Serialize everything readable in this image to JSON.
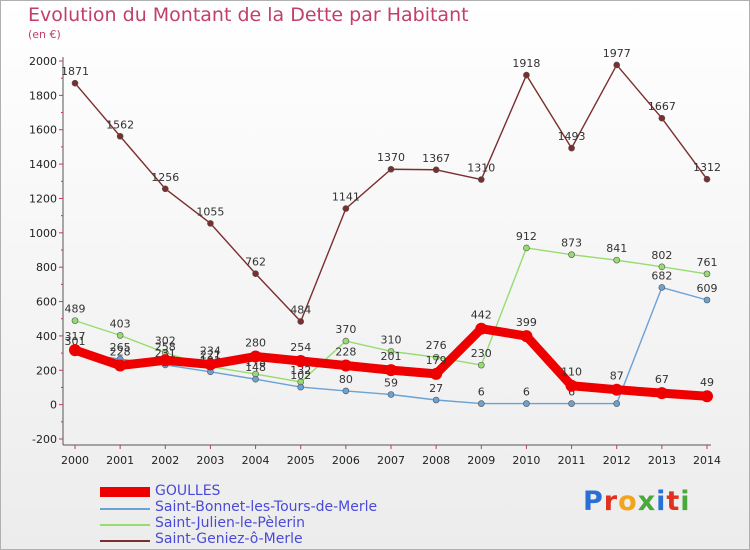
{
  "title": "Evolution du Montant de la Dette par Habitant",
  "subtitle": "(en €)",
  "logo": {
    "text": "Proxiti",
    "colors": [
      "#2a6fd6",
      "#e0301e",
      "#f2a51a",
      "#4aa83c",
      "#2a6fd6",
      "#e0301e",
      "#4aa83c"
    ]
  },
  "chart_data": {
    "type": "line",
    "title": "Evolution du Montant de la Dette par Habitant",
    "ylabel": "(en €)",
    "ylim": [
      -200,
      2000
    ],
    "yticks": [
      -200,
      0,
      200,
      400,
      600,
      800,
      1000,
      1200,
      1400,
      1600,
      1800,
      2000
    ],
    "grid": false,
    "legend_position": "bottom-left",
    "x": [
      "2000",
      "2001",
      "2002",
      "2003",
      "2004",
      "2005",
      "2006",
      "2007",
      "2008",
      "2009",
      "2010",
      "2011",
      "2012",
      "2013",
      "2014"
    ],
    "series": [
      {
        "name": "GOULLES",
        "color": "#ee0000",
        "values": [
          317,
          228,
          258,
          234,
          280,
          254,
          228,
          201,
          179,
          442,
          399,
          110,
          87,
          67,
          49
        ]
      },
      {
        "name": "Saint-Bonnet-les-Tours-de-Merle",
        "color": "#6aa2d4",
        "values": [
          301,
          265,
          231,
          191,
          148,
          102,
          80,
          59,
          27,
          6,
          6,
          6,
          6,
          682,
          609
        ]
      },
      {
        "name": "Saint-Julien-le-Pèlerin",
        "color": "#96dc6e",
        "values": [
          489,
          403,
          302,
          221,
          178,
          132,
          370,
          310,
          276,
          230,
          912,
          873,
          841,
          802,
          761
        ]
      },
      {
        "name": "Saint-Geniez-ô-Merle",
        "color": "#7a2e2e",
        "values": [
          1871,
          1562,
          1256,
          1055,
          762,
          484,
          1141,
          1370,
          1367,
          1310,
          1918,
          1493,
          1977,
          1667,
          1312
        ]
      }
    ]
  }
}
